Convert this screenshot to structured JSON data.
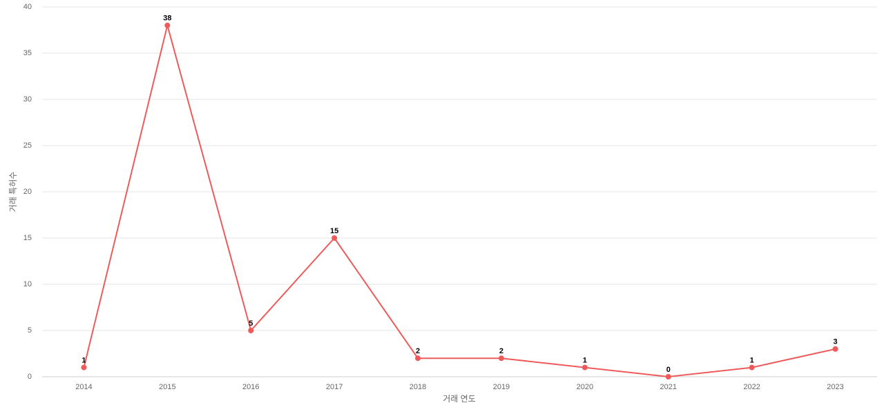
{
  "chart_data": {
    "type": "line",
    "x_label": "거래 연도",
    "y_label": "거래 특허수",
    "categories": [
      "2014",
      "2015",
      "2016",
      "2017",
      "2018",
      "2019",
      "2020",
      "2021",
      "2022",
      "2023"
    ],
    "values": [
      1,
      38,
      5,
      15,
      2,
      2,
      1,
      0,
      1,
      3
    ],
    "color": "#ee5a5a",
    "ylim": [
      0,
      40
    ],
    "yticks": [
      0,
      5,
      10,
      15,
      20,
      25,
      30,
      35,
      40
    ],
    "grid": true
  }
}
